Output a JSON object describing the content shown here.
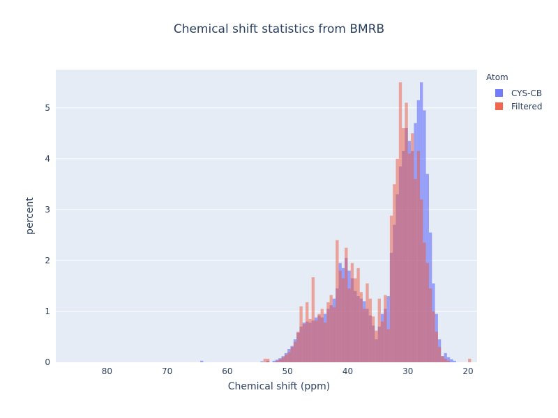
{
  "chart_data": {
    "type": "histogram",
    "title": "Chemical shift statistics from BMRB",
    "xlabel": "Chemical shift (ppm)",
    "ylabel": "percent",
    "xlim": [
      88.5,
      18.5
    ],
    "ylim": [
      0,
      5.75
    ],
    "x_reversed": true,
    "x_ticks": [
      80,
      70,
      60,
      50,
      40,
      30,
      20
    ],
    "y_ticks": [
      0,
      1,
      2,
      3,
      4,
      5
    ],
    "bin_width": 0.5,
    "grid": true,
    "legend_position": "top-right",
    "legend_title": "Atom",
    "series": [
      {
        "name": "CYS-CB",
        "color": "#636efa",
        "opacity": 0.6,
        "bins": [
          [
            64.0,
            0.03
          ],
          [
            54.0,
            0.02
          ],
          [
            53.0,
            0.03
          ],
          [
            52.0,
            0.03
          ],
          [
            51.5,
            0.05
          ],
          [
            51.0,
            0.08
          ],
          [
            50.5,
            0.12
          ],
          [
            50.0,
            0.18
          ],
          [
            49.5,
            0.26
          ],
          [
            49.0,
            0.32
          ],
          [
            48.5,
            0.45
          ],
          [
            48.0,
            0.58
          ],
          [
            47.5,
            0.7
          ],
          [
            47.0,
            0.78
          ],
          [
            46.5,
            0.8
          ],
          [
            46.0,
            0.78
          ],
          [
            45.5,
            0.82
          ],
          [
            45.0,
            0.88
          ],
          [
            44.5,
            0.92
          ],
          [
            44.0,
            0.88
          ],
          [
            43.5,
            0.95
          ],
          [
            43.0,
            1.05
          ],
          [
            42.5,
            1.12
          ],
          [
            42.0,
            1.25
          ],
          [
            41.5,
            1.45
          ],
          [
            41.0,
            1.95
          ],
          [
            40.5,
            1.85
          ],
          [
            40.0,
            2.05
          ],
          [
            39.5,
            1.8
          ],
          [
            39.0,
            1.65
          ],
          [
            38.5,
            1.4
          ],
          [
            38.0,
            1.3
          ],
          [
            37.5,
            1.25
          ],
          [
            37.0,
            1.2
          ],
          [
            36.5,
            1.05
          ],
          [
            36.0,
            0.92
          ],
          [
            35.5,
            0.72
          ],
          [
            35.0,
            0.45
          ],
          [
            34.5,
            0.7
          ],
          [
            34.0,
            0.95
          ],
          [
            33.5,
            1.05
          ],
          [
            33.0,
            1.3
          ],
          [
            32.5,
            2.15
          ],
          [
            32.0,
            2.7
          ],
          [
            31.5,
            3.3
          ],
          [
            31.0,
            3.85
          ],
          [
            30.5,
            4.15
          ],
          [
            30.0,
            4.6
          ],
          [
            29.5,
            4.35
          ],
          [
            29.0,
            4.15
          ],
          [
            28.5,
            4.7
          ],
          [
            28.0,
            5.15
          ],
          [
            27.5,
            5.5
          ],
          [
            27.0,
            4.95
          ],
          [
            26.5,
            3.7
          ],
          [
            26.0,
            2.55
          ],
          [
            25.5,
            1.55
          ],
          [
            25.0,
            0.95
          ],
          [
            24.5,
            0.45
          ],
          [
            24.0,
            0.12
          ],
          [
            23.5,
            0.18
          ],
          [
            23.0,
            0.1
          ],
          [
            22.5,
            0.06
          ],
          [
            22.0,
            0.03
          ]
        ]
      },
      {
        "name": "Filtered",
        "color": "#ef553b",
        "opacity": 0.5,
        "bins": [
          [
            53.5,
            0.07
          ],
          [
            53.0,
            0.07
          ],
          [
            51.5,
            0.03
          ],
          [
            51.0,
            0.06
          ],
          [
            50.5,
            0.1
          ],
          [
            50.0,
            0.15
          ],
          [
            49.5,
            0.2
          ],
          [
            49.0,
            0.3
          ],
          [
            48.5,
            0.4
          ],
          [
            48.0,
            0.6
          ],
          [
            47.5,
            1.1
          ],
          [
            47.0,
            0.75
          ],
          [
            46.5,
            1.18
          ],
          [
            46.0,
            0.85
          ],
          [
            45.5,
            1.67
          ],
          [
            45.0,
            0.82
          ],
          [
            44.5,
            0.95
          ],
          [
            44.0,
            1.05
          ],
          [
            43.5,
            0.78
          ],
          [
            43.0,
            1.18
          ],
          [
            42.5,
            1.32
          ],
          [
            42.0,
            1.08
          ],
          [
            41.5,
            2.4
          ],
          [
            41.0,
            1.8
          ],
          [
            40.5,
            1.65
          ],
          [
            40.0,
            2.25
          ],
          [
            39.5,
            1.45
          ],
          [
            39.0,
            1.95
          ],
          [
            38.5,
            1.65
          ],
          [
            38.0,
            1.85
          ],
          [
            37.5,
            1.38
          ],
          [
            37.0,
            1.05
          ],
          [
            36.5,
            1.55
          ],
          [
            36.0,
            1.25
          ],
          [
            35.5,
            0.9
          ],
          [
            35.0,
            0.62
          ],
          [
            34.5,
            1.25
          ],
          [
            34.0,
            0.8
          ],
          [
            33.5,
            1.32
          ],
          [
            33.0,
            0.65
          ],
          [
            32.5,
            2.88
          ],
          [
            32.0,
            3.5
          ],
          [
            31.5,
            4.0
          ],
          [
            31.0,
            5.5
          ],
          [
            30.5,
            4.6
          ],
          [
            30.0,
            5.1
          ],
          [
            29.5,
            4.1
          ],
          [
            29.0,
            4.5
          ],
          [
            28.5,
            3.6
          ],
          [
            28.0,
            4.15
          ],
          [
            27.5,
            3.2
          ],
          [
            27.0,
            2.35
          ],
          [
            26.5,
            1.95
          ],
          [
            26.0,
            1.45
          ],
          [
            25.5,
            1.0
          ],
          [
            25.0,
            0.6
          ],
          [
            24.5,
            0.3
          ],
          [
            24.0,
            0.12
          ],
          [
            23.5,
            0.07
          ],
          [
            23.0,
            0.03
          ],
          [
            19.5,
            0.07
          ]
        ]
      }
    ]
  },
  "colors": {
    "plot_background": "#e5ecf6",
    "gridline": "#ffffff",
    "text": "#2a3f5f"
  }
}
